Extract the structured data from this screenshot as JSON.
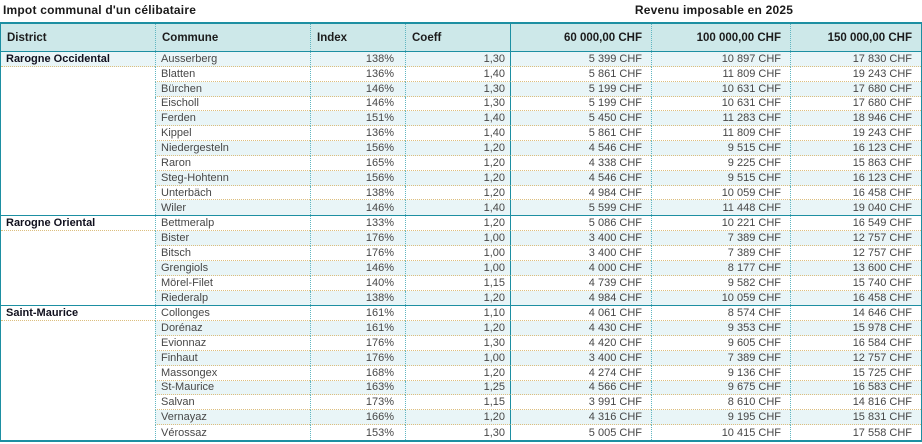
{
  "title_left": "Impot communal d'un célibataire",
  "title_right": "Revenu imposable en 2025",
  "columns": {
    "district": "District",
    "commune": "Commune",
    "index": "Index",
    "coeff": "Coeff",
    "amounts": [
      "60 000,00 CHF",
      "100 000,00 CHF",
      "150 000,00 CHF"
    ]
  },
  "colors": {
    "border_teal": "#1d8fa2",
    "grid_dotted_teal": "#5fb6c1",
    "grid_dotted_orange": "#dcbe7e",
    "header_bg": "#cde8e9",
    "stripe_bg": "#e9f5f7"
  },
  "sections": [
    {
      "district": "Rarogne Occidental",
      "rows": [
        {
          "commune": "Ausserberg",
          "index": "138%",
          "coeff": "1,30",
          "a60": "5 399 CHF",
          "a100": "10 897 CHF",
          "a150": "17 830 CHF"
        },
        {
          "commune": "Blatten",
          "index": "136%",
          "coeff": "1,40",
          "a60": "5 861 CHF",
          "a100": "11 809 CHF",
          "a150": "19 243 CHF"
        },
        {
          "commune": "Bürchen",
          "index": "146%",
          "coeff": "1,30",
          "a60": "5 199 CHF",
          "a100": "10 631 CHF",
          "a150": "17 680 CHF"
        },
        {
          "commune": "Eischoll",
          "index": "146%",
          "coeff": "1,30",
          "a60": "5 199 CHF",
          "a100": "10 631 CHF",
          "a150": "17 680 CHF"
        },
        {
          "commune": "Ferden",
          "index": "151%",
          "coeff": "1,40",
          "a60": "5 450 CHF",
          "a100": "11 283 CHF",
          "a150": "18 946 CHF"
        },
        {
          "commune": "Kippel",
          "index": "136%",
          "coeff": "1,40",
          "a60": "5 861 CHF",
          "a100": "11 809 CHF",
          "a150": "19 243 CHF"
        },
        {
          "commune": "Niedergesteln",
          "index": "156%",
          "coeff": "1,20",
          "a60": "4 546 CHF",
          "a100": "9 515 CHF",
          "a150": "16 123 CHF"
        },
        {
          "commune": "Raron",
          "index": "165%",
          "coeff": "1,20",
          "a60": "4 338 CHF",
          "a100": "9 225 CHF",
          "a150": "15 863 CHF"
        },
        {
          "commune": "Steg-Hohtenn",
          "index": "156%",
          "coeff": "1,20",
          "a60": "4 546 CHF",
          "a100": "9 515 CHF",
          "a150": "16 123 CHF"
        },
        {
          "commune": "Unterbäch",
          "index": "138%",
          "coeff": "1,20",
          "a60": "4 984 CHF",
          "a100": "10 059 CHF",
          "a150": "16 458 CHF"
        },
        {
          "commune": "Wiler",
          "index": "146%",
          "coeff": "1,40",
          "a60": "5 599 CHF",
          "a100": "11 448 CHF",
          "a150": "19 040 CHF"
        }
      ]
    },
    {
      "district": "Rarogne Oriental",
      "rows": [
        {
          "commune": "Bettmeralp",
          "index": "133%",
          "coeff": "1,20",
          "a60": "5 086 CHF",
          "a100": "10 221 CHF",
          "a150": "16 549 CHF"
        },
        {
          "commune": "Bister",
          "index": "176%",
          "coeff": "1,00",
          "a60": "3 400 CHF",
          "a100": "7 389 CHF",
          "a150": "12 757 CHF"
        },
        {
          "commune": "Bitsch",
          "index": "176%",
          "coeff": "1,00",
          "a60": "3 400 CHF",
          "a100": "7 389 CHF",
          "a150": "12 757 CHF"
        },
        {
          "commune": "Grengiols",
          "index": "146%",
          "coeff": "1,00",
          "a60": "4 000 CHF",
          "a100": "8 177 CHF",
          "a150": "13 600 CHF"
        },
        {
          "commune": "Mörel-Filet",
          "index": "140%",
          "coeff": "1,15",
          "a60": "4 739 CHF",
          "a100": "9 582 CHF",
          "a150": "15 740 CHF"
        },
        {
          "commune": "Riederalp",
          "index": "138%",
          "coeff": "1,20",
          "a60": "4 984 CHF",
          "a100": "10 059 CHF",
          "a150": "16 458 CHF"
        }
      ]
    },
    {
      "district": "Saint-Maurice",
      "rows": [
        {
          "commune": "Collonges",
          "index": "161%",
          "coeff": "1,10",
          "a60": "4 061 CHF",
          "a100": "8 574 CHF",
          "a150": "14 646 CHF"
        },
        {
          "commune": "Dorénaz",
          "index": "161%",
          "coeff": "1,20",
          "a60": "4 430 CHF",
          "a100": "9 353 CHF",
          "a150": "15 978 CHF"
        },
        {
          "commune": "Evionnaz",
          "index": "176%",
          "coeff": "1,30",
          "a60": "4 420 CHF",
          "a100": "9 605 CHF",
          "a150": "16 584 CHF"
        },
        {
          "commune": "Finhaut",
          "index": "176%",
          "coeff": "1,00",
          "a60": "3 400 CHF",
          "a100": "7 389 CHF",
          "a150": "12 757 CHF"
        },
        {
          "commune": "Massongex",
          "index": "168%",
          "coeff": "1,20",
          "a60": "4 274 CHF",
          "a100": "9 136 CHF",
          "a150": "15 725 CHF"
        },
        {
          "commune": "St-Maurice",
          "index": "163%",
          "coeff": "1,25",
          "a60": "4 566 CHF",
          "a100": "9 675 CHF",
          "a150": "16 583 CHF"
        },
        {
          "commune": "Salvan",
          "index": "173%",
          "coeff": "1,15",
          "a60": "3 991 CHF",
          "a100": "8 610 CHF",
          "a150": "14 816 CHF"
        },
        {
          "commune": "Vernayaz",
          "index": "166%",
          "coeff": "1,20",
          "a60": "4 316 CHF",
          "a100": "9 195 CHF",
          "a150": "15 831 CHF"
        },
        {
          "commune": "Vérossaz",
          "index": "153%",
          "coeff": "1,30",
          "a60": "5 005 CHF",
          "a100": "10 415 CHF",
          "a150": "17 558 CHF"
        }
      ]
    }
  ]
}
